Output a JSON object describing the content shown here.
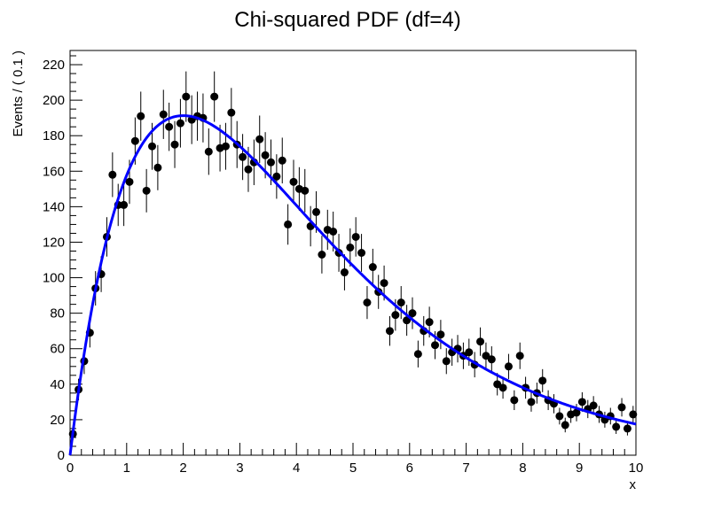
{
  "chart_data": {
    "type": "scatter",
    "title": "Chi-squared PDF (df=4)",
    "xlabel": "x",
    "ylabel": "Events / ( 0.1 )",
    "xlim": [
      0,
      10
    ],
    "ylim": [
      0,
      228
    ],
    "grid": false,
    "x_ticks": [
      "0",
      "1",
      "2",
      "3",
      "4",
      "5",
      "6",
      "7",
      "8",
      "9",
      "10"
    ],
    "y_ticks": [
      "0",
      "20",
      "40",
      "60",
      "80",
      "100",
      "120",
      "140",
      "160",
      "180",
      "200",
      "220"
    ],
    "series": [
      {
        "kind": "points_with_errors",
        "color": "#000000",
        "x": [
          0.05,
          0.15,
          0.25,
          0.35,
          0.45,
          0.55,
          0.65,
          0.75,
          0.85,
          0.95,
          1.05,
          1.15,
          1.25,
          1.35,
          1.45,
          1.55,
          1.65,
          1.75,
          1.85,
          1.95,
          2.05,
          2.15,
          2.25,
          2.35,
          2.45,
          2.55,
          2.65,
          2.75,
          2.85,
          2.95,
          3.05,
          3.15,
          3.25,
          3.35,
          3.45,
          3.55,
          3.65,
          3.75,
          3.85,
          3.95,
          4.05,
          4.15,
          4.25,
          4.35,
          4.45,
          4.55,
          4.65,
          4.75,
          4.85,
          4.95,
          5.05,
          5.15,
          5.25,
          5.35,
          5.45,
          5.55,
          5.65,
          5.75,
          5.85,
          5.95,
          6.05,
          6.15,
          6.25,
          6.35,
          6.45,
          6.55,
          6.65,
          6.75,
          6.85,
          6.95,
          7.05,
          7.15,
          7.25,
          7.35,
          7.45,
          7.55,
          7.65,
          7.75,
          7.85,
          7.95,
          8.05,
          8.15,
          8.25,
          8.35,
          8.45,
          8.55,
          8.65,
          8.75,
          8.85,
          8.95,
          9.05,
          9.15,
          9.25,
          9.35,
          9.45,
          9.55,
          9.65,
          9.75,
          9.85,
          9.95
        ],
        "y": [
          12,
          37,
          53,
          69,
          94,
          102,
          123,
          158,
          141,
          141,
          154,
          177,
          191,
          149,
          174,
          162,
          192,
          185,
          175,
          187,
          202,
          189,
          191,
          190,
          171,
          202,
          173,
          174,
          193,
          175,
          168,
          161,
          165,
          178,
          169,
          165,
          157,
          166,
          130,
          154,
          150,
          149,
          129,
          137,
          113,
          127,
          126,
          114,
          103,
          117,
          123,
          114,
          86,
          106,
          92,
          97,
          70,
          79,
          86,
          76,
          80,
          57,
          70,
          75,
          62,
          68,
          53,
          58,
          60,
          56,
          58,
          51,
          64,
          56,
          54,
          40,
          38,
          50,
          31,
          56,
          38,
          30,
          35,
          42,
          31,
          29,
          22,
          17,
          23,
          24,
          30,
          26,
          28,
          23,
          20,
          22,
          16,
          27,
          15,
          23
        ]
      },
      {
        "kind": "curve",
        "name": "",
        "color": "#0000ff",
        "function": "N/4 * x * exp(-x/2)",
        "normalization_N": 1040
      }
    ]
  }
}
